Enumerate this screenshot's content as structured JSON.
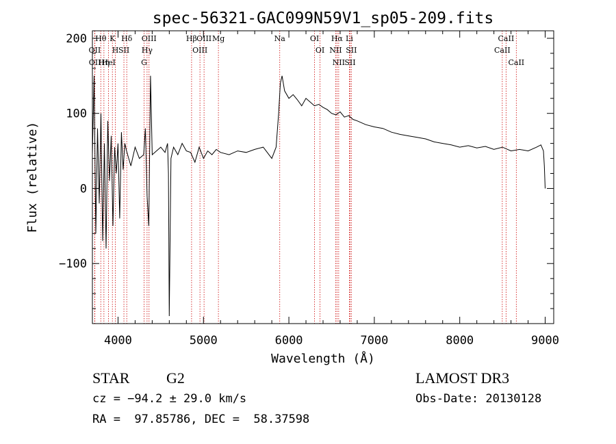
{
  "chart_data": {
    "type": "line",
    "title": "spec-56321-GAC099N59V1_sp05-209.fits",
    "xlabel": "Wavelength (Å)",
    "ylabel": "Flux (relative)",
    "xlim": [
      3700,
      9100
    ],
    "ylim": [
      -180,
      210
    ],
    "xticks": [
      4000,
      5000,
      6000,
      7000,
      8000,
      9000
    ],
    "yticks": [
      -100,
      0,
      100,
      200
    ],
    "xtick_labels": [
      "4000",
      "5000",
      "6000",
      "7000",
      "8000",
      "9000"
    ],
    "ytick_labels": [
      "−100",
      "0",
      "100",
      "200"
    ],
    "series": [
      {
        "name": "flux",
        "x": [
          3700,
          3720,
          3740,
          3760,
          3780,
          3800,
          3820,
          3840,
          3860,
          3880,
          3900,
          3920,
          3940,
          3960,
          3980,
          4000,
          4020,
          4040,
          4060,
          4080,
          4100,
          4150,
          4200,
          4250,
          4300,
          4320,
          4340,
          4360,
          4380,
          4400,
          4450,
          4500,
          4550,
          4580,
          4590,
          4600,
          4620,
          4650,
          4700,
          4750,
          4800,
          4850,
          4900,
          4950,
          5000,
          5050,
          5100,
          5150,
          5200,
          5300,
          5400,
          5500,
          5600,
          5700,
          5800,
          5850,
          5880,
          5900,
          5920,
          5950,
          6000,
          6050,
          6100,
          6150,
          6200,
          6250,
          6300,
          6350,
          6400,
          6450,
          6500,
          6550,
          6600,
          6650,
          6700,
          6750,
          6800,
          6900,
          7000,
          7100,
          7200,
          7300,
          7400,
          7500,
          7600,
          7700,
          7800,
          7900,
          8000,
          8100,
          8200,
          8300,
          8400,
          8500,
          8600,
          8700,
          8800,
          8900,
          8950,
          8980,
          8990,
          9000
        ],
        "values": [
          45,
          150,
          -60,
          80,
          -20,
          100,
          -70,
          60,
          -80,
          90,
          10,
          70,
          -50,
          55,
          20,
          60,
          -40,
          75,
          25,
          60,
          50,
          30,
          55,
          40,
          45,
          80,
          -10,
          -50,
          150,
          45,
          50,
          55,
          48,
          60,
          20,
          -170,
          40,
          55,
          45,
          60,
          50,
          48,
          35,
          55,
          40,
          50,
          45,
          52,
          48,
          45,
          50,
          48,
          52,
          55,
          40,
          55,
          100,
          140,
          150,
          130,
          120,
          125,
          118,
          110,
          120,
          115,
          110,
          112,
          108,
          105,
          100,
          98,
          102,
          95,
          97,
          92,
          90,
          85,
          82,
          80,
          75,
          72,
          70,
          68,
          66,
          62,
          60,
          58,
          55,
          57,
          54,
          56,
          52,
          55,
          50,
          52,
          50,
          55,
          58,
          50,
          30,
          0
        ]
      }
    ],
    "lines": [
      {
        "label": "Hθ",
        "x": 3798
      },
      {
        "label": "OII",
        "x": 3727
      },
      {
        "label": "OII",
        "x": 3729
      },
      {
        "label": "K",
        "x": 3934
      },
      {
        "label": "HeI",
        "x": 3889
      },
      {
        "label": "Hη",
        "x": 3835
      },
      {
        "label": "Hδ",
        "x": 4102
      },
      {
        "label": "SII",
        "x": 4069
      },
      {
        "label": "H",
        "x": 3969
      },
      {
        "label": "OIII",
        "x": 4363
      },
      {
        "label": "Hγ",
        "x": 4340
      },
      {
        "label": "G",
        "x": 4305
      },
      {
        "label": "OIII",
        "x": 5007
      },
      {
        "label": "OIII",
        "x": 4959
      },
      {
        "label": "Hβ",
        "x": 4861
      },
      {
        "label": "Mg",
        "x": 5175
      },
      {
        "label": "Na",
        "x": 5893
      },
      {
        "label": "OI",
        "x": 6300
      },
      {
        "label": "OI",
        "x": 6364
      },
      {
        "label": "Hα",
        "x": 6563
      },
      {
        "label": "NII",
        "x": 6548
      },
      {
        "label": "NII",
        "x": 6583
      },
      {
        "label": "SII",
        "x": 6716
      },
      {
        "label": "Li",
        "x": 6708
      },
      {
        "label": "SII",
        "x": 6731
      },
      {
        "label": "CaII",
        "x": 8542
      },
      {
        "label": "CaII",
        "x": 8498
      },
      {
        "label": "CaII",
        "x": 8662
      }
    ]
  },
  "info": {
    "class": "STAR",
    "subclass": "G2",
    "survey": "LAMOST DR3",
    "cz": "cz = −94.2 ± 29.0 km/s",
    "obs_date": "Obs-Date: 20130128",
    "radec": "RA =  97.85786, DEC =  58.37598"
  },
  "colors": {
    "axis": "#000000",
    "line_marker": "#cc0000",
    "spectrum": "#000000"
  }
}
